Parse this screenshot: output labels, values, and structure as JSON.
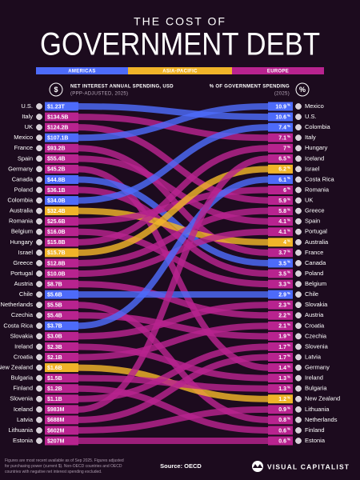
{
  "header": {
    "title_top": "THE COST OF",
    "title_main": "GOVERNMENT DEBT"
  },
  "legend": [
    {
      "name": "AMERICAS",
      "color": "#4d6bfa"
    },
    {
      "name": "ASIA-PACIFIC",
      "color": "#f0b429"
    },
    {
      "name": "EUROPE",
      "color": "#b8238f"
    }
  ],
  "left": {
    "icon": "$",
    "heading": "NET INTEREST ANNUAL SPENDING, USD",
    "subheading": "(PPP-ADJUSTED, 2025)",
    "rows": [
      {
        "country": "U.S.",
        "spending": "$1.23T",
        "color": "#4d6bfa"
      },
      {
        "country": "Italy",
        "spending": "$134.5B",
        "color": "#b8238f"
      },
      {
        "country": "UK",
        "spending": "$124.2B",
        "color": "#b8238f"
      },
      {
        "country": "Mexico",
        "spending": "$107.1B",
        "color": "#4d6bfa"
      },
      {
        "country": "France",
        "spending": "$93.2B",
        "color": "#b8238f"
      },
      {
        "country": "Spain",
        "spending": "$55.4B",
        "color": "#b8238f"
      },
      {
        "country": "Germany",
        "spending": "$45.2B",
        "color": "#b8238f"
      },
      {
        "country": "Canada",
        "spending": "$44.8B",
        "color": "#4d6bfa"
      },
      {
        "country": "Poland",
        "spending": "$36.1B",
        "color": "#b8238f"
      },
      {
        "country": "Colombia",
        "spending": "$34.0B",
        "color": "#4d6bfa"
      },
      {
        "country": "Australia",
        "spending": "$32.4B",
        "color": "#f0b429"
      },
      {
        "country": "Romania",
        "spending": "$25.6B",
        "color": "#b8238f"
      },
      {
        "country": "Belgium",
        "spending": "$16.0B",
        "color": "#b8238f"
      },
      {
        "country": "Hungary",
        "spending": "$15.8B",
        "color": "#b8238f"
      },
      {
        "country": "Israel",
        "spending": "$15.7B",
        "color": "#f0b429"
      },
      {
        "country": "Greece",
        "spending": "$12.8B",
        "color": "#b8238f"
      },
      {
        "country": "Portugal",
        "spending": "$10.0B",
        "color": "#b8238f"
      },
      {
        "country": "Austria",
        "spending": "$8.7B",
        "color": "#b8238f"
      },
      {
        "country": "Chile",
        "spending": "$5.6B",
        "color": "#4d6bfa"
      },
      {
        "country": "Netherlands",
        "spending": "$5.5B",
        "color": "#b8238f"
      },
      {
        "country": "Czechia",
        "spending": "$5.4B",
        "color": "#b8238f"
      },
      {
        "country": "Costa Rica",
        "spending": "$3.7B",
        "color": "#4d6bfa"
      },
      {
        "country": "Slovakia",
        "spending": "$3.0B",
        "color": "#b8238f"
      },
      {
        "country": "Ireland",
        "spending": "$2.3B",
        "color": "#b8238f"
      },
      {
        "country": "Croatia",
        "spending": "$2.1B",
        "color": "#b8238f"
      },
      {
        "country": "New Zealand",
        "spending": "$1.6B",
        "color": "#f0b429"
      },
      {
        "country": "Bulgaria",
        "spending": "$1.5B",
        "color": "#b8238f"
      },
      {
        "country": "Finland",
        "spending": "$1.2B",
        "color": "#b8238f"
      },
      {
        "country": "Slovenia",
        "spending": "$1.1B",
        "color": "#b8238f"
      },
      {
        "country": "Iceland",
        "spending": "$983M",
        "color": "#b8238f"
      },
      {
        "country": "Latvia",
        "spending": "$688M",
        "color": "#b8238f"
      },
      {
        "country": "Lithuania",
        "spending": "$602M",
        "color": "#b8238f"
      },
      {
        "country": "Estonia",
        "spending": "$207M",
        "color": "#b8238f"
      }
    ]
  },
  "right": {
    "icon": "%",
    "heading": "% OF GOVERNMENT SPENDING",
    "subheading": "(2025)",
    "unit": "%",
    "rows": [
      {
        "country": "Mexico",
        "share": 10.9
      },
      {
        "country": "U.S.",
        "share": 10.6
      },
      {
        "country": "Colombia",
        "share": 7.4
      },
      {
        "country": "Italy",
        "share": 7.1
      },
      {
        "country": "Hungary",
        "share": 7.0
      },
      {
        "country": "Iceland",
        "share": 6.5
      },
      {
        "country": "Israel",
        "share": 6.2
      },
      {
        "country": "Costa Rica",
        "share": 6.1
      },
      {
        "country": "Romania",
        "share": 6.0
      },
      {
        "country": "UK",
        "share": 5.9
      },
      {
        "country": "Greece",
        "share": 5.8
      },
      {
        "country": "Spain",
        "share": 4.1
      },
      {
        "country": "Portugal",
        "share": 4.1
      },
      {
        "country": "Australia",
        "share": 4.0
      },
      {
        "country": "France",
        "share": 3.7
      },
      {
        "country": "Canada",
        "share": 3.5
      },
      {
        "country": "Poland",
        "share": 3.5
      },
      {
        "country": "Belgium",
        "share": 3.3
      },
      {
        "country": "Chile",
        "share": 2.9
      },
      {
        "country": "Slovakia",
        "share": 2.3
      },
      {
        "country": "Austria",
        "share": 2.2
      },
      {
        "country": "Croatia",
        "share": 2.1
      },
      {
        "country": "Czechia",
        "share": 1.9
      },
      {
        "country": "Slovenia",
        "share": 1.7
      },
      {
        "country": "Latvia",
        "share": 1.7
      },
      {
        "country": "Germany",
        "share": 1.4
      },
      {
        "country": "Ireland",
        "share": 1.3
      },
      {
        "country": "Bulgaria",
        "share": 1.3
      },
      {
        "country": "New Zealand",
        "share": 1.2
      },
      {
        "country": "Lithuania",
        "share": 0.9
      },
      {
        "country": "Netherlands",
        "share": 0.8
      },
      {
        "country": "Finland",
        "share": 0.6
      },
      {
        "country": "Estonia",
        "share": 0.6
      }
    ]
  },
  "footer": {
    "note": [
      "Figures are most recent available as of Sep 2025. Figures adjusted",
      "for purchasing power (current $). Non-OECD countries and OECD",
      "countries with negative net interest spending excluded."
    ],
    "source": "Source: OECD",
    "brand": "VISUAL CAPITALIST"
  }
}
